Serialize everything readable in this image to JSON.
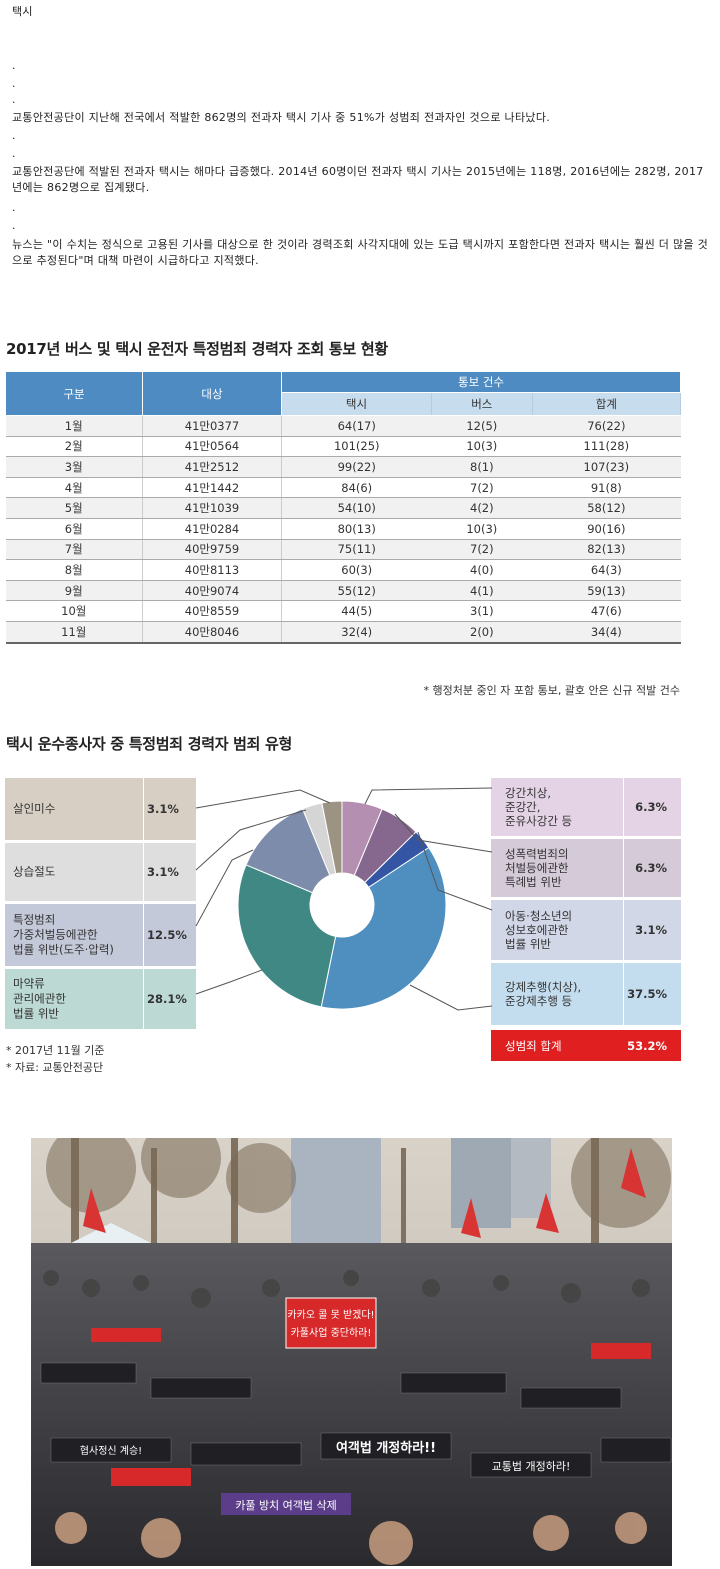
{
  "article": {
    "title": "택시",
    "dots": [
      ".",
      ".",
      ".",
      ".",
      ".",
      ".",
      "."
    ],
    "p1": "교통안전공단이 지난해 전국에서 적발한 862명의 전과자 택시 기사 중 51%가 성범죄 전과자인 것으로 나타났다.",
    "p2": "교통안전공단에 적발된 전과자 택시는 해마다 급증했다. 2014년 60명이던 전과자 택시 기사는 2015년에는 118명, 2016년에는 282명, 2017년에는 862명으로 집계됐다.",
    "p3": "뉴스는 \"이 수치는 정식으로 고용된 기사를 대상으로 한 것이라 경력조회 사각지대에 있는 도급 택시까지 포함한다면 전과자 택시는 훨씬 더 많을 것으로 추정된다\"며 대책 마련이 시급하다고 지적했다."
  },
  "table": {
    "title": "2017년 버스 및 택시 운전자 특정범죄 경력자 조회 통보 현황",
    "headers": {
      "gubun": "구분",
      "target": "대상",
      "group": "통보 건수",
      "taxi": "택시",
      "bus": "버스",
      "total": "합계"
    },
    "rows": [
      [
        "1월",
        "41만0377",
        "64(17)",
        "12(5)",
        "76(22)"
      ],
      [
        "2월",
        "41만0564",
        "101(25)",
        "10(3)",
        "111(28)"
      ],
      [
        "3월",
        "41만2512",
        "99(22)",
        "8(1)",
        "107(23)"
      ],
      [
        "4월",
        "41만1442",
        "84(6)",
        "7(2)",
        "91(8)"
      ],
      [
        "5월",
        "41만1039",
        "54(10)",
        "4(2)",
        "58(12)"
      ],
      [
        "6월",
        "41만0284",
        "80(13)",
        "10(3)",
        "90(16)"
      ],
      [
        "7월",
        "40만9759",
        "75(11)",
        "7(2)",
        "82(13)"
      ],
      [
        "8월",
        "40만8113",
        "60(3)",
        "4(0)",
        "64(3)"
      ],
      [
        "9월",
        "40만9074",
        "55(12)",
        "4(1)",
        "59(13)"
      ],
      [
        "10월",
        "40만8559",
        "44(5)",
        "3(1)",
        "47(6)"
      ],
      [
        "11월",
        "40만8046",
        "32(4)",
        "2(0)",
        "34(4)"
      ]
    ],
    "note": "* 행정처분 중인 자 포함 통보, 괄호 안은 신규 적발 건수"
  },
  "chart_data": {
    "type": "pie",
    "title": "택시 운수종사자 중 특정범죄 경력자 범죄 유형",
    "slices": [
      {
        "label": "강간치상, 준강간, 준유사강간 등",
        "lines": [
          "강간치상,",
          "준강간,",
          "준유사강간 등"
        ],
        "value": 6.3,
        "pct": "6.3%",
        "color": "#b58fb1",
        "box": "#e3d3e4"
      },
      {
        "label": "성폭력범죄의 처벌등에관한 특례법 위반",
        "lines": [
          "성폭력범죄의",
          "처벌등에관한",
          "특례법 위반"
        ],
        "value": 6.3,
        "pct": "6.3%",
        "color": "#86688f",
        "box": "#d5cad8"
      },
      {
        "label": "아동·청소년의 성보호에관한 법률 위반",
        "lines": [
          "아동·청소년의",
          "성보호에관한",
          "법률 위반"
        ],
        "value": 3.1,
        "pct": "3.1%",
        "color": "#3455a3",
        "box": "#d2d7e8"
      },
      {
        "label": "강제추행(치상), 준강제추행 등",
        "lines": [
          "강제추행(치상),",
          "준강제추행 등"
        ],
        "value": 37.5,
        "pct": "37.5%",
        "color": "#4e8fc0",
        "box": "#c3dcee"
      },
      {
        "label": "마약류 관리에관한 법률 위반",
        "lines": [
          "마약류",
          "관리에관한",
          "법률 위반"
        ],
        "value": 28.1,
        "pct": "28.1%",
        "color": "#3f8884",
        "box": "#bcd9d3"
      },
      {
        "label": "특정범죄 가중처벌등에관한 법률 위반(도주·압력)",
        "lines": [
          "특정범죄",
          "가중처벌등에관한",
          "법률 위반(도주·압력)"
        ],
        "value": 12.5,
        "pct": "12.5%",
        "color": "#7d8cab",
        "box": "#c4c9d9"
      },
      {
        "label": "상습절도",
        "lines": [
          "상습절도"
        ],
        "value": 3.1,
        "pct": "3.1%",
        "color": "#d5d5d5",
        "box": "#dedede"
      },
      {
        "label": "살인미수",
        "lines": [
          "살인미수"
        ],
        "value": 3.1,
        "pct": "3.1%",
        "color": "#9c9483",
        "box": "#d7cfc4"
      }
    ],
    "total": {
      "label": "성범죄 합계",
      "pct": "53.2%",
      "color": "#e02020"
    },
    "notes": [
      "* 2017년 11월 기준",
      "* 자료: 교통안전공단"
    ]
  },
  "photo": {
    "signs": [
      "카카오 콜 못 받겠다!",
      "카풀사업 중단하라!",
      "여객법 개정하라!!",
      "카풀 방치 여객법 삭제",
      "협사정신 계승!",
      "교통법 개정하라!"
    ]
  },
  "colors": {
    "table_header": "#4e8bc3",
    "table_subheader": "#c7dced",
    "accent_red": "#e02020"
  }
}
